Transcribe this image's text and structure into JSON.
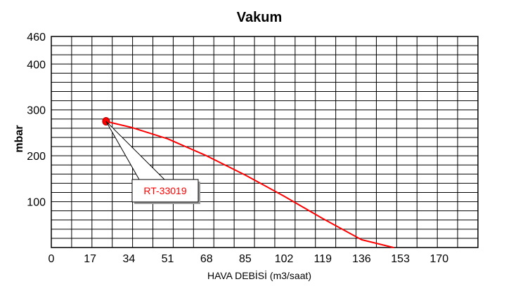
{
  "chart_data": {
    "type": "line",
    "title": "Vakum",
    "xlabel": "HAVA DEBİSİ (m3/saat)",
    "ylabel": "mbar",
    "xlim": [
      0,
      187
    ],
    "ylim": [
      0,
      460
    ],
    "x_ticks": [
      0,
      17,
      34,
      51,
      68,
      85,
      102,
      119,
      136,
      153,
      170
    ],
    "y_ticks": [
      100,
      200,
      300,
      400,
      460
    ],
    "grid": true,
    "legend": "none",
    "series": [
      {
        "name": "RT-33019",
        "color": "#ff0000",
        "x": [
          24,
          35,
          51,
          68,
          85,
          102,
          119,
          136,
          150
        ],
        "y": [
          275,
          262,
          237,
          200,
          158,
          112,
          63,
          17,
          0
        ]
      }
    ],
    "annotations": [
      {
        "text": "RT-33019",
        "x": 24,
        "y": 275,
        "color": "#ff0000"
      }
    ],
    "colors": {
      "series": "#ff0000",
      "grid": "#000000",
      "marker": "#ff0000",
      "text": "#000000"
    }
  }
}
